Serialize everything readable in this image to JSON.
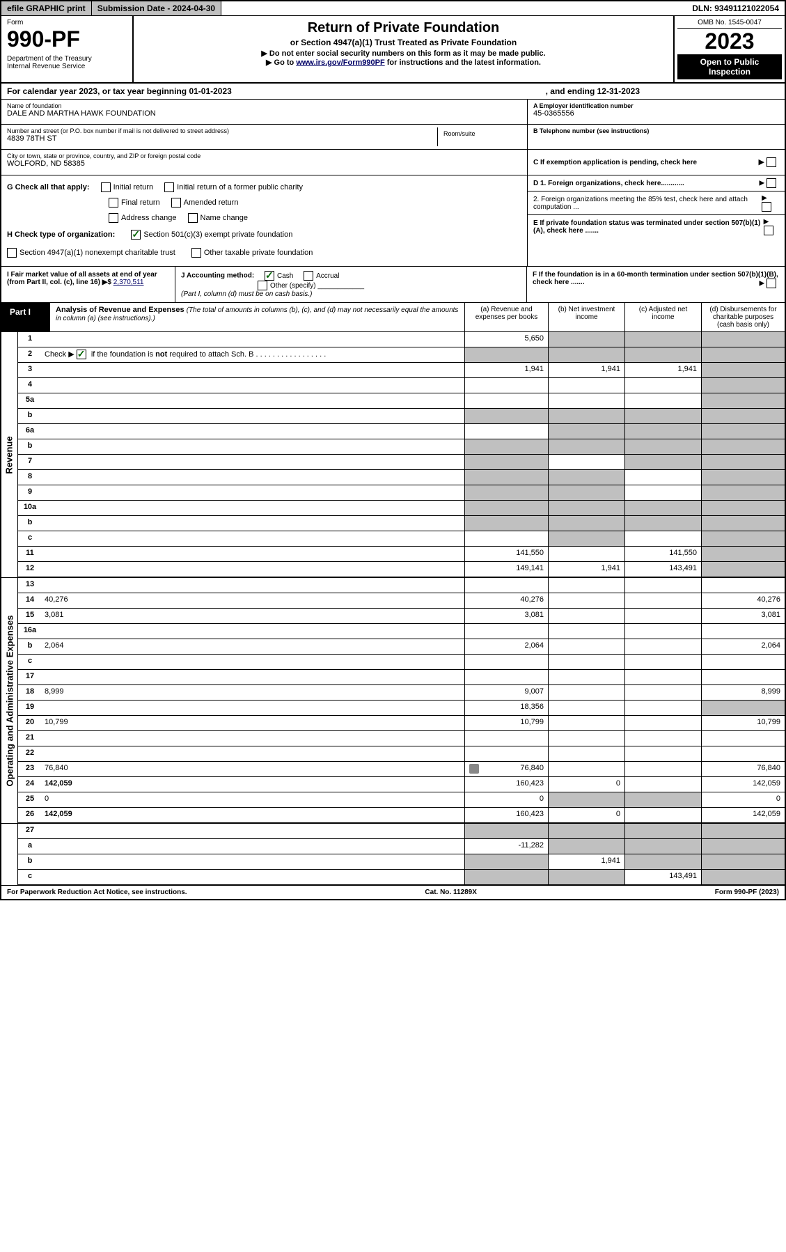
{
  "topbar": {
    "efile": "efile GRAPHIC print",
    "subdate_label": "Submission Date - 2024-04-30",
    "dln": "DLN: 93491121022054"
  },
  "header": {
    "form_label": "Form",
    "form_num": "990-PF",
    "dept": "Department of the Treasury\nInternal Revenue Service",
    "title": "Return of Private Foundation",
    "subtitle": "or Section 4947(a)(1) Trust Treated as Private Foundation",
    "instr1": "▶ Do not enter social security numbers on this form as it may be made public.",
    "instr2_pre": "▶ Go to ",
    "instr2_link": "www.irs.gov/Form990PF",
    "instr2_post": " for instructions and the latest information.",
    "omb": "OMB No. 1545-0047",
    "year": "2023",
    "open": "Open to Public Inspection"
  },
  "calyear": {
    "text": "For calendar year 2023, or tax year beginning 01-01-2023",
    "ending": ", and ending 12-31-2023"
  },
  "info": {
    "name_label": "Name of foundation",
    "name": "DALE AND MARTHA HAWK FOUNDATION",
    "street_label": "Number and street (or P.O. box number if mail is not delivered to street address)",
    "street": "4839 78TH ST",
    "room_label": "Room/suite",
    "city_label": "City or town, state or province, country, and ZIP or foreign postal code",
    "city": "WOLFORD, ND  58385",
    "ein_label": "A Employer identification number",
    "ein": "45-0365556",
    "phone_label": "B Telephone number (see instructions)",
    "c_label": "C If exemption application is pending, check here",
    "d1": "D 1. Foreign organizations, check here............",
    "d2": "2. Foreign organizations meeting the 85% test, check here and attach computation ...",
    "e": "E  If private foundation status was terminated under section 507(b)(1)(A), check here .......",
    "f": "F  If the foundation is in a 60-month termination under section 507(b)(1)(B), check here .......",
    "g_label": "G Check all that apply:",
    "g_opts": [
      "Initial return",
      "Initial return of a former public charity",
      "Final return",
      "Amended return",
      "Address change",
      "Name change"
    ],
    "h_label": "H Check type of organization:",
    "h_opt1": "Section 501(c)(3) exempt private foundation",
    "h_opt2": "Section 4947(a)(1) nonexempt charitable trust",
    "h_opt3": "Other taxable private foundation",
    "i_label": "I Fair market value of all assets at end of year (from Part II, col. (c), line 16) ▶$",
    "i_val": "2,370,511",
    "j_label": "J Accounting method:",
    "j_cash": "Cash",
    "j_accrual": "Accrual",
    "j_other": "Other (specify)",
    "j_note": "(Part I, column (d) must be on cash basis.)"
  },
  "part1": {
    "label": "Part I",
    "title": "Analysis of Revenue and Expenses",
    "note": "(The total of amounts in columns (b), (c), and (d) may not necessarily equal the amounts in column (a) (see instructions).)",
    "col_a": "(a)   Revenue and expenses per books",
    "col_b": "(b)   Net investment income",
    "col_c": "(c)   Adjusted net income",
    "col_d": "(d)   Disbursements for charitable purposes (cash basis only)"
  },
  "sidelabels": {
    "revenue": "Revenue",
    "opex": "Operating and Administrative Expenses"
  },
  "rows": [
    {
      "n": "1",
      "d": "",
      "a": "5,650",
      "b": "",
      "c": "",
      "gray_b": true,
      "gray_c": true,
      "gray_d": true
    },
    {
      "n": "2",
      "d": "",
      "a": "",
      "b": "",
      "c": "",
      "gray_a": true,
      "gray_b": true,
      "gray_c": true,
      "gray_d": true,
      "checkmark": true
    },
    {
      "n": "3",
      "d": "",
      "a": "1,941",
      "b": "1,941",
      "c": "1,941",
      "gray_d": true
    },
    {
      "n": "4",
      "d": "",
      "a": "",
      "b": "",
      "c": "",
      "gray_d": true
    },
    {
      "n": "5a",
      "d": "",
      "a": "",
      "b": "",
      "c": "",
      "gray_d": true
    },
    {
      "n": "b",
      "d": "",
      "a": "",
      "b": "",
      "c": "",
      "gray_a": true,
      "gray_b": true,
      "gray_c": true,
      "gray_d": true
    },
    {
      "n": "6a",
      "d": "",
      "a": "",
      "b": "",
      "c": "",
      "gray_b": true,
      "gray_c": true,
      "gray_d": true
    },
    {
      "n": "b",
      "d": "",
      "a": "",
      "b": "",
      "c": "",
      "gray_a": true,
      "gray_b": true,
      "gray_c": true,
      "gray_d": true
    },
    {
      "n": "7",
      "d": "",
      "a": "",
      "b": "",
      "c": "",
      "gray_a": true,
      "gray_c": true,
      "gray_d": true
    },
    {
      "n": "8",
      "d": "",
      "a": "",
      "b": "",
      "c": "",
      "gray_a": true,
      "gray_b": true,
      "gray_d": true
    },
    {
      "n": "9",
      "d": "",
      "a": "",
      "b": "",
      "c": "",
      "gray_a": true,
      "gray_b": true,
      "gray_d": true
    },
    {
      "n": "10a",
      "d": "",
      "a": "",
      "b": "",
      "c": "",
      "gray_a": true,
      "gray_b": true,
      "gray_c": true,
      "gray_d": true
    },
    {
      "n": "b",
      "d": "",
      "a": "",
      "b": "",
      "c": "",
      "gray_a": true,
      "gray_b": true,
      "gray_c": true,
      "gray_d": true
    },
    {
      "n": "c",
      "d": "",
      "a": "",
      "b": "",
      "c": "",
      "gray_b": true,
      "gray_d": true
    },
    {
      "n": "11",
      "d": "",
      "a": "141,550",
      "b": "",
      "c": "141,550",
      "gray_d": true
    },
    {
      "n": "12",
      "d": "",
      "a": "149,141",
      "b": "1,941",
      "c": "143,491",
      "bold": true,
      "gray_d": true
    }
  ],
  "rows2": [
    {
      "n": "13",
      "d": "",
      "a": "",
      "b": "",
      "c": ""
    },
    {
      "n": "14",
      "d": "40,276",
      "a": "40,276",
      "b": "",
      "c": ""
    },
    {
      "n": "15",
      "d": "3,081",
      "a": "3,081",
      "b": "",
      "c": ""
    },
    {
      "n": "16a",
      "d": "",
      "a": "",
      "b": "",
      "c": ""
    },
    {
      "n": "b",
      "d": "2,064",
      "a": "2,064",
      "b": "",
      "c": ""
    },
    {
      "n": "c",
      "d": "",
      "a": "",
      "b": "",
      "c": ""
    },
    {
      "n": "17",
      "d": "",
      "a": "",
      "b": "",
      "c": ""
    },
    {
      "n": "18",
      "d": "8,999",
      "a": "9,007",
      "b": "",
      "c": ""
    },
    {
      "n": "19",
      "d": "",
      "a": "18,356",
      "b": "",
      "c": "",
      "gray_d": true
    },
    {
      "n": "20",
      "d": "10,799",
      "a": "10,799",
      "b": "",
      "c": ""
    },
    {
      "n": "21",
      "d": "",
      "a": "",
      "b": "",
      "c": ""
    },
    {
      "n": "22",
      "d": "",
      "a": "",
      "b": "",
      "c": ""
    },
    {
      "n": "23",
      "d": "76,840",
      "a": "76,840",
      "b": "",
      "c": "",
      "icon": true
    },
    {
      "n": "24",
      "d": "142,059",
      "a": "160,423",
      "b": "0",
      "c": "",
      "bold": true
    },
    {
      "n": "25",
      "d": "0",
      "a": "0",
      "b": "",
      "c": "",
      "gray_b": true,
      "gray_c": true
    },
    {
      "n": "26",
      "d": "142,059",
      "a": "160,423",
      "b": "0",
      "c": "",
      "bold": true
    }
  ],
  "rows3": [
    {
      "n": "27",
      "d": "",
      "a": "",
      "b": "",
      "c": "",
      "gray_a": true,
      "gray_b": true,
      "gray_c": true,
      "gray_d": true
    },
    {
      "n": "a",
      "d": "",
      "a": "-11,282",
      "b": "",
      "c": "",
      "bold": true,
      "gray_b": true,
      "gray_c": true,
      "gray_d": true
    },
    {
      "n": "b",
      "d": "",
      "a": "",
      "b": "1,941",
      "c": "",
      "bold": true,
      "gray_a": true,
      "gray_c": true,
      "gray_d": true
    },
    {
      "n": "c",
      "d": "",
      "a": "",
      "b": "",
      "c": "143,491",
      "bold": true,
      "gray_a": true,
      "gray_b": true,
      "gray_d": true
    }
  ],
  "footer": {
    "left": "For Paperwork Reduction Act Notice, see instructions.",
    "mid": "Cat. No. 11289X",
    "right": "Form 990-PF (2023)"
  }
}
